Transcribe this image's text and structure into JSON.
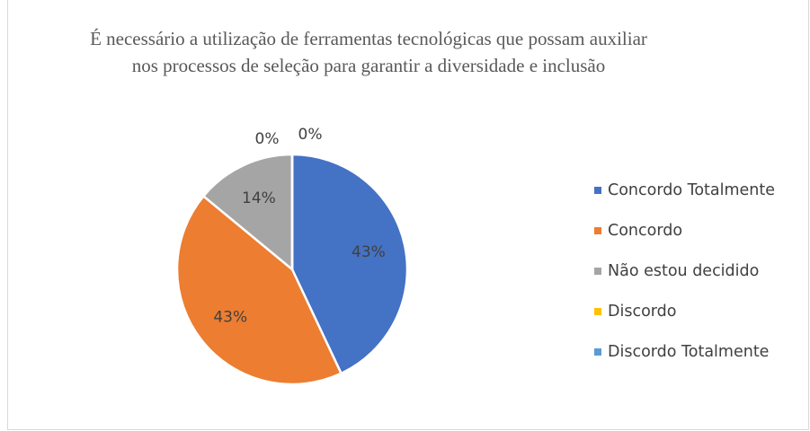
{
  "chart_data": {
    "type": "pie",
    "title": "É necessário a utilização de ferramentas tecnológicas que possam auxiliar nos processos de seleção para garantir a diversidade e inclusão",
    "categories": [
      "Concordo Totalmente",
      "Concordo",
      "Não estou decidido",
      "Discordo",
      "Discordo Totalmente"
    ],
    "values": [
      43,
      43,
      14,
      0,
      0
    ],
    "value_labels": [
      "43%",
      "43%",
      "14%",
      "0%",
      "0%"
    ],
    "colors": [
      "#4472c4",
      "#ed7d31",
      "#a5a5a5",
      "#ffc000",
      "#5b9bd5"
    ],
    "legend": "right"
  }
}
